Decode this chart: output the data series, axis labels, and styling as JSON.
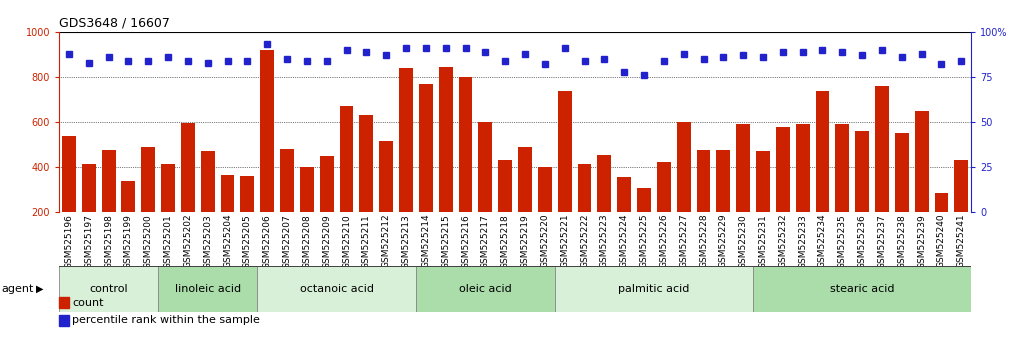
{
  "title": "GDS3648 / 16607",
  "samples": [
    "GSM525196",
    "GSM525197",
    "GSM525198",
    "GSM525199",
    "GSM525200",
    "GSM525201",
    "GSM525202",
    "GSM525203",
    "GSM525204",
    "GSM525205",
    "GSM525206",
    "GSM525207",
    "GSM525208",
    "GSM525209",
    "GSM525210",
    "GSM525211",
    "GSM525212",
    "GSM525213",
    "GSM525214",
    "GSM525215",
    "GSM525216",
    "GSM525217",
    "GSM525218",
    "GSM525219",
    "GSM525220",
    "GSM525221",
    "GSM525222",
    "GSM525223",
    "GSM525224",
    "GSM525225",
    "GSM525226",
    "GSM525227",
    "GSM525228",
    "GSM525229",
    "GSM525230",
    "GSM525231",
    "GSM525232",
    "GSM525233",
    "GSM525234",
    "GSM525235",
    "GSM525236",
    "GSM525237",
    "GSM525238",
    "GSM525239",
    "GSM525240",
    "GSM525241"
  ],
  "counts": [
    540,
    415,
    475,
    340,
    490,
    415,
    595,
    470,
    365,
    360,
    920,
    480,
    400,
    450,
    670,
    630,
    515,
    840,
    770,
    845,
    800,
    600,
    430,
    490,
    400,
    740,
    415,
    455,
    355,
    310,
    425,
    600,
    475,
    475,
    590,
    470,
    580,
    590,
    740,
    590,
    560,
    760,
    550,
    650,
    285,
    430
  ],
  "percentiles": [
    88,
    83,
    86,
    84,
    84,
    86,
    84,
    83,
    84,
    84,
    93,
    85,
    84,
    84,
    90,
    89,
    87,
    91,
    91,
    91,
    91,
    89,
    84,
    88,
    82,
    91,
    84,
    85,
    78,
    76,
    84,
    88,
    85,
    86,
    87,
    86,
    89,
    89,
    90,
    89,
    87,
    90,
    86,
    88,
    82,
    84
  ],
  "groups": [
    {
      "label": "control",
      "start": 0,
      "end": 5,
      "color": "#d8f0d8"
    },
    {
      "label": "linoleic acid",
      "start": 5,
      "end": 10,
      "color": "#aaddaa"
    },
    {
      "label": "octanoic acid",
      "start": 10,
      "end": 18,
      "color": "#d8f0d8"
    },
    {
      "label": "oleic acid",
      "start": 18,
      "end": 25,
      "color": "#aaddaa"
    },
    {
      "label": "palmitic acid",
      "start": 25,
      "end": 35,
      "color": "#d8f0d8"
    },
    {
      "label": "stearic acid",
      "start": 35,
      "end": 46,
      "color": "#aaddaa"
    }
  ],
  "ylim_left": [
    200,
    1000
  ],
  "ylim_right": [
    0,
    100
  ],
  "bar_color": "#cc2200",
  "dot_color": "#2222cc",
  "xtick_bg_color": "#c8c8c8",
  "title_fontsize": 9,
  "tick_fontsize": 6.5,
  "label_fontsize": 8,
  "grid_values": [
    400,
    600,
    800
  ],
  "left_ticks": [
    200,
    400,
    600,
    800,
    1000
  ],
  "right_ticks": [
    0,
    25,
    50,
    75,
    100
  ],
  "right_tick_labels": [
    "0",
    "25",
    "50",
    "75",
    "100%"
  ]
}
